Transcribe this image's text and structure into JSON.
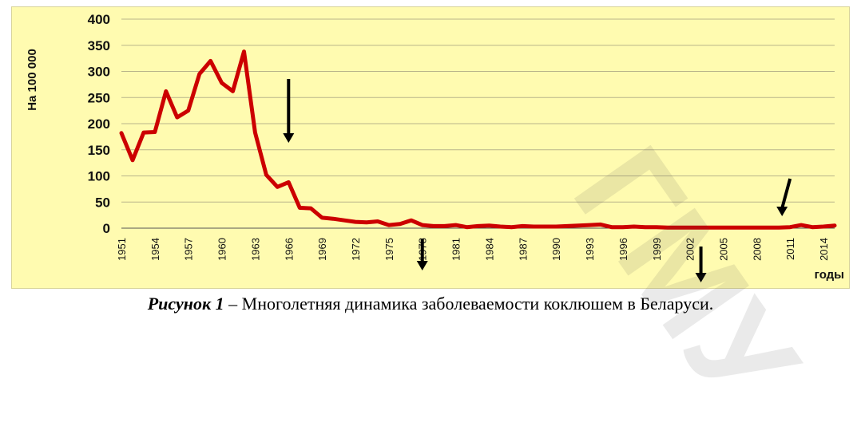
{
  "chart_data": {
    "type": "line",
    "ylabel": "На 100 000",
    "xlabel": "годы",
    "ylim": [
      0,
      400
    ],
    "y_ticks": [
      "0",
      "50",
      "100",
      "150",
      "200",
      "250",
      "300",
      "350",
      "400"
    ],
    "x_tick_labels": [
      "1951",
      "1954",
      "1957",
      "1960",
      "1963",
      "1966",
      "1969",
      "1972",
      "1975",
      "1978",
      "1981",
      "1984",
      "1987",
      "1990",
      "1993",
      "1996",
      "1999",
      "2002",
      "2005",
      "2008",
      "2011",
      "2014"
    ],
    "grid": true,
    "series": [
      {
        "color": "#cc0000",
        "x": [
          1951,
          1952,
          1953,
          1954,
          1955,
          1956,
          1957,
          1958,
          1959,
          1960,
          1961,
          1962,
          1963,
          1964,
          1965,
          1966,
          1967,
          1968,
          1969,
          1970,
          1971,
          1972,
          1973,
          1974,
          1975,
          1976,
          1977,
          1978,
          1979,
          1980,
          1981,
          1982,
          1983,
          1984,
          1985,
          1986,
          1987,
          1988,
          1989,
          1990,
          1991,
          1992,
          1993,
          1994,
          1995,
          1996,
          1997,
          1998,
          1999,
          2000,
          2001,
          2002,
          2003,
          2004,
          2005,
          2006,
          2007,
          2008,
          2009,
          2010,
          2011,
          2012,
          2013,
          2014,
          2015
        ],
        "values": [
          182,
          130,
          183,
          184,
          262,
          212,
          225,
          295,
          320,
          278,
          262,
          338,
          183,
          102,
          79,
          88,
          39,
          38,
          20,
          18,
          15,
          12,
          11,
          13,
          6,
          8,
          15,
          6,
          4,
          4,
          6,
          2,
          4,
          5,
          3,
          2,
          4,
          3,
          3,
          3,
          4,
          5,
          6,
          7,
          2,
          2,
          3,
          2,
          2,
          1,
          1,
          1,
          1,
          1,
          1,
          1,
          1,
          1,
          1,
          1,
          2,
          6,
          2,
          3,
          5
        ]
      }
    ],
    "arrow_years": [
      1966,
      1978,
      2003,
      2011
    ],
    "arrow_color": "#000000"
  },
  "caption": {
    "figure_label": "Рисунок 1",
    "text": " – Многолетняя динамика заболеваемости коклюшем в Беларуси."
  },
  "watermark": {
    "text": "ГМУ"
  }
}
